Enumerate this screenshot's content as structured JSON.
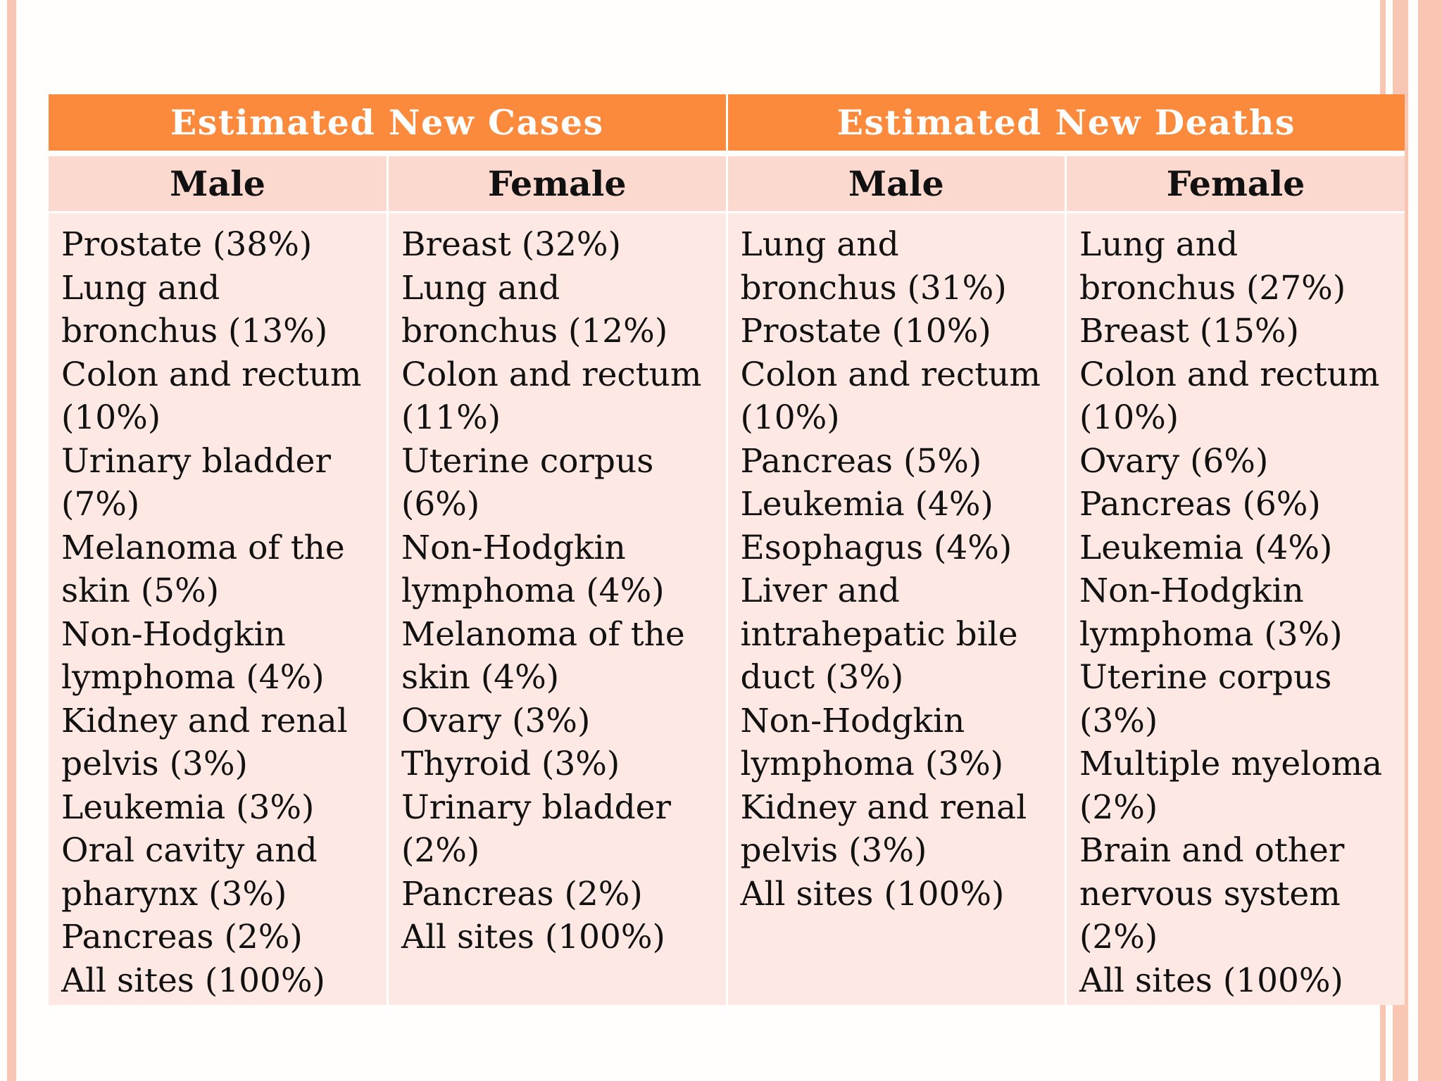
{
  "table": {
    "group_headers": [
      "Estimated New Cases",
      "Estimated New Deaths"
    ],
    "sub_headers": [
      "Male",
      "Female",
      "Male",
      "Female"
    ],
    "columns": [
      {
        "group": "Estimated New Cases",
        "sex": "Male",
        "entries": [
          "Prostate (38%)",
          "Lung and bronchus (13%)",
          "Colon and rectum (10%)",
          "Urinary bladder (7%)",
          "Melanoma of the skin (5%)",
          "Non-Hodgkin lymphoma (4%)",
          "Kidney and renal pelvis (3%)",
          "Leukemia (3%)",
          "Oral cavity and pharynx (3%)",
          "Pancreas (2%)",
          "All sites (100%)"
        ]
      },
      {
        "group": "Estimated New Cases",
        "sex": "Female",
        "entries": [
          "Breast (32%)",
          "Lung and bronchus (12%)",
          "Colon and rectum (11%)",
          "Uterine corpus (6%)",
          "Non-Hodgkin lymphoma (4%)",
          "Melanoma of the skin (4%)",
          "Ovary (3%)",
          "Thyroid (3%)",
          "Urinary bladder (2%)",
          "Pancreas (2%)",
          "All sites (100%)"
        ]
      },
      {
        "group": "Estimated New Deaths",
        "sex": "Male",
        "entries": [
          "Lung and bronchus (31%)",
          "Prostate (10%)",
          "Colon and rectum (10%)",
          "Pancreas (5%)",
          "Leukemia (4%)",
          "Esophagus (4%)",
          "Liver and intrahepatic bile duct (3%)",
          "Non-Hodgkin lymphoma (3%)",
          "Kidney and renal pelvis (3%)",
          "All sites (100%)"
        ]
      },
      {
        "group": "Estimated New Deaths",
        "sex": "Female",
        "entries": [
          "Lung and bronchus (27%)",
          "Breast (15%)",
          "Colon and rectum (10%)",
          "Ovary (6%)",
          "Pancreas (6%)",
          "Leukemia (4%)",
          "Non-Hodgkin lymphoma (3%)",
          "Uterine corpus (3%)",
          "Multiple myeloma (2%)",
          "Brain and other nervous system (2%)",
          "All sites (100%)"
        ]
      }
    ]
  },
  "colors": {
    "header_orange": "#fb8a3c",
    "subheader_pink": "#fcd9ce",
    "body_pink": "#fde8e4",
    "stripe_salmon": "#f9c6b3"
  }
}
